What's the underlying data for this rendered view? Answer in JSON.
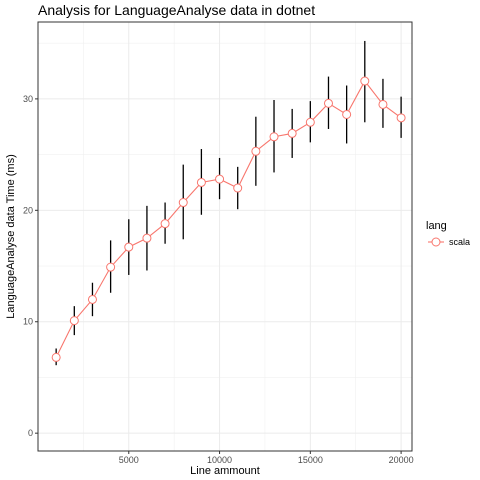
{
  "chart_data": {
    "type": "line",
    "title": "Analysis for LanguageAnalyse data in dotnet",
    "xlabel": "Line ammount",
    "ylabel": "LanguageAnalyse data Time (ms)",
    "xlim": [
      0,
      20600
    ],
    "ylim": [
      -1.6,
      36.9
    ],
    "xticks": [
      5000,
      10000,
      15000,
      20000
    ],
    "xtick_labels": [
      "5000",
      "10000",
      "15000",
      "20000"
    ],
    "yticks": [
      0,
      10,
      20,
      30
    ],
    "ytick_labels": [
      "0",
      "10",
      "20",
      "30"
    ],
    "grid": true,
    "legend": {
      "title": "lang",
      "position": "right"
    },
    "series": [
      {
        "name": "scala",
        "color": "#F8766D",
        "x": [
          1000,
          2000,
          3000,
          4000,
          5000,
          6000,
          7000,
          8000,
          9000,
          10000,
          11000,
          12000,
          13000,
          14000,
          15000,
          16000,
          17000,
          18000,
          19000,
          20000
        ],
        "y": [
          6.8,
          10.1,
          12.0,
          14.9,
          16.7,
          17.5,
          18.8,
          20.7,
          22.5,
          22.8,
          22.0,
          25.3,
          26.6,
          26.9,
          27.9,
          29.6,
          28.6,
          31.6,
          29.5,
          28.3
        ],
        "err_low": [
          6.1,
          8.8,
          10.5,
          12.6,
          14.2,
          14.6,
          17.0,
          17.4,
          19.6,
          21.0,
          20.1,
          22.2,
          23.4,
          24.7,
          26.1,
          27.3,
          26.0,
          27.9,
          27.4,
          26.5
        ],
        "err_high": [
          7.6,
          11.4,
          13.5,
          17.3,
          19.2,
          20.4,
          20.7,
          24.1,
          25.5,
          24.7,
          23.9,
          28.4,
          29.9,
          29.1,
          29.8,
          32.0,
          31.2,
          35.2,
          31.8,
          30.2
        ]
      }
    ]
  }
}
